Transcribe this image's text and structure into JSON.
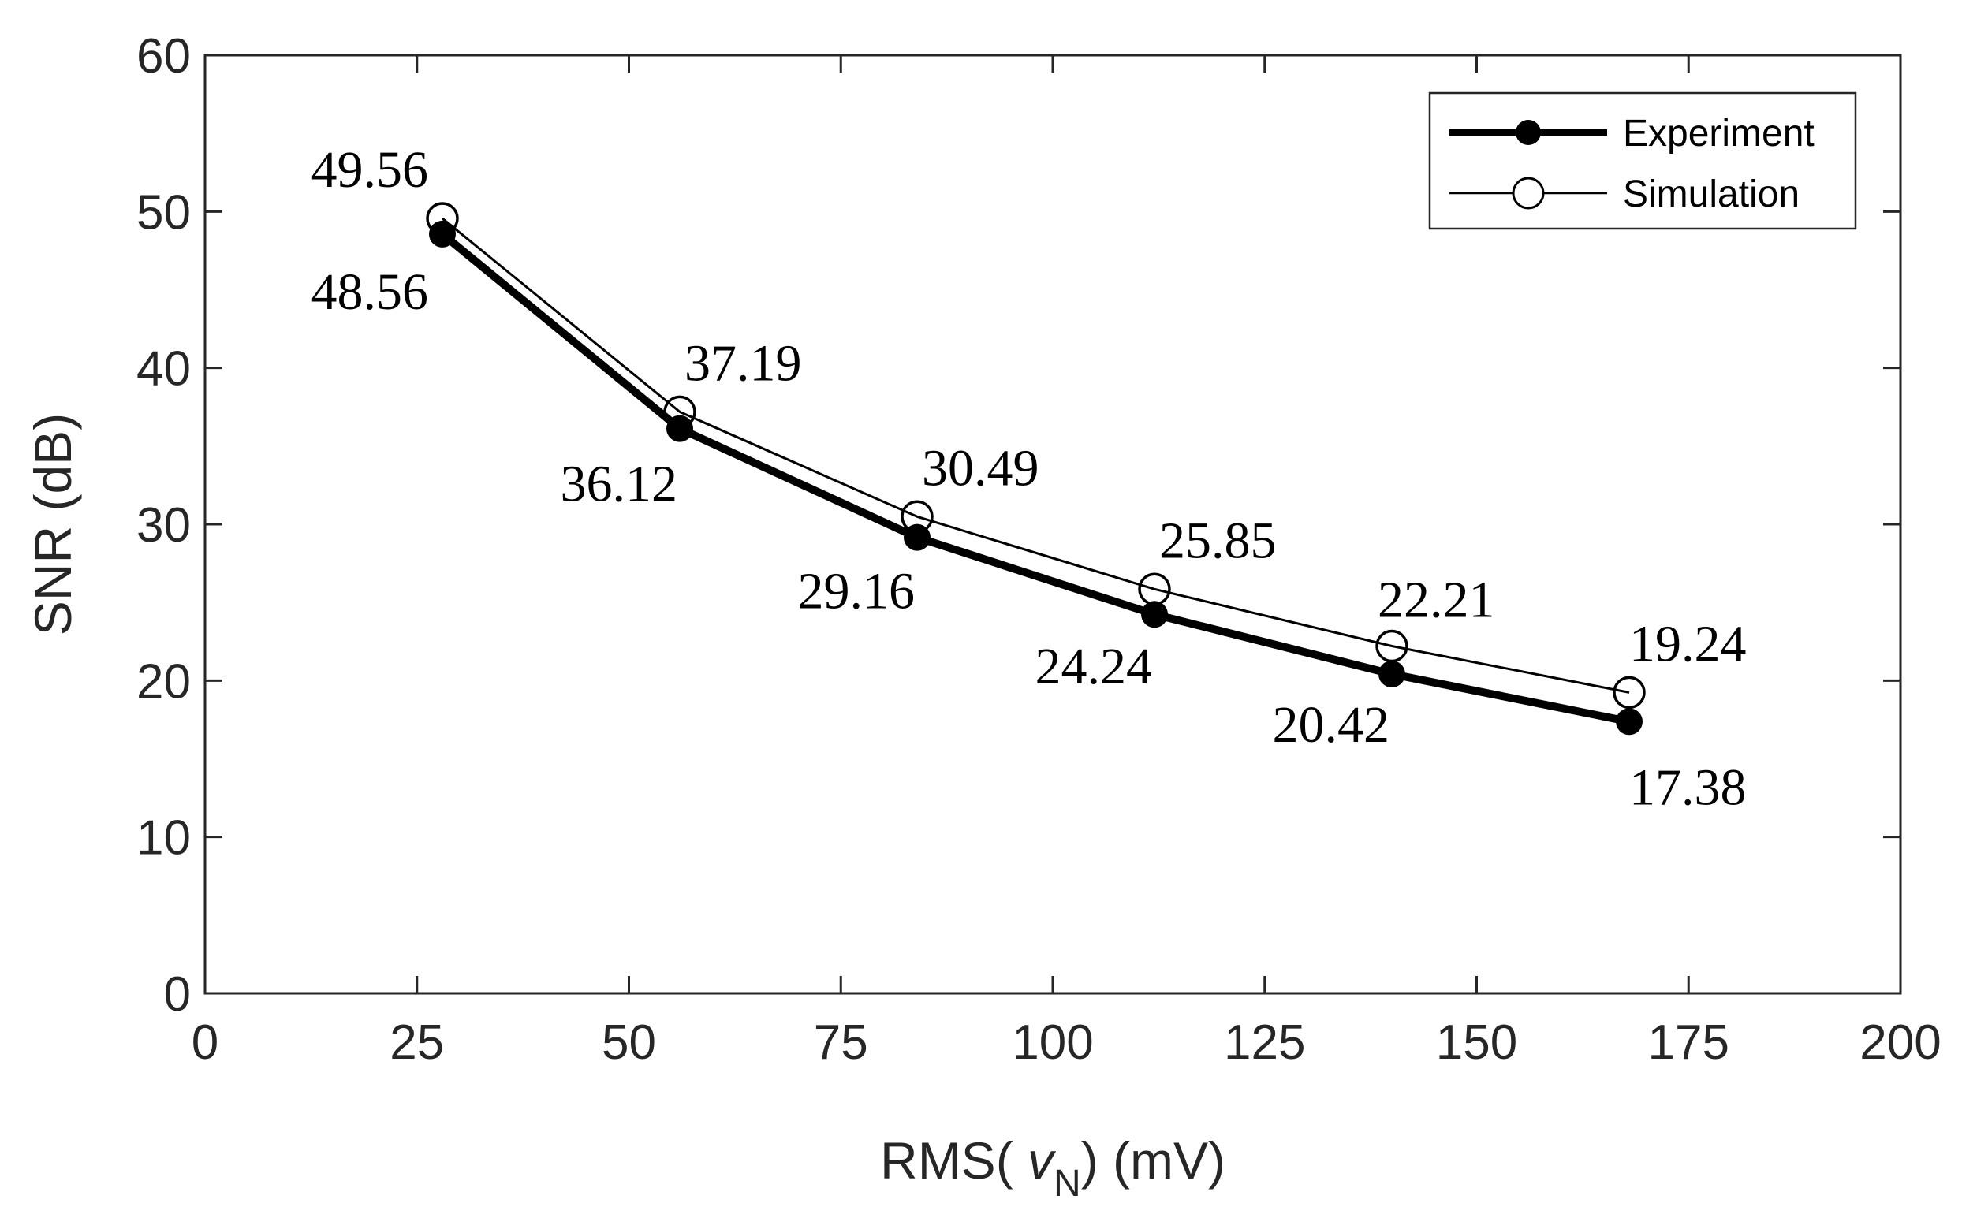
{
  "chart_data": {
    "type": "line",
    "xlabel": {
      "prefix": "RMS( ",
      "var": "v",
      "sub": "N",
      "suffix": ") (mV)"
    },
    "ylabel": "SNR (dB)",
    "xlim": [
      0,
      200
    ],
    "ylim": [
      0,
      60
    ],
    "xticks": [
      0,
      25,
      50,
      75,
      100,
      125,
      150,
      175,
      200
    ],
    "yticks": [
      0,
      10,
      20,
      30,
      40,
      50,
      60
    ],
    "x": [
      28,
      56,
      84,
      112,
      140,
      168
    ],
    "grid": false,
    "legend_position": "top-right",
    "series": [
      {
        "name": "Experiment",
        "values": [
          48.56,
          36.12,
          29.16,
          24.24,
          20.42,
          17.38
        ],
        "labels": [
          "48.56",
          "36.12",
          "29.16",
          "24.24",
          "20.42",
          "17.38"
        ],
        "marker": "filled-circle",
        "line": "thick",
        "color": "#000000"
      },
      {
        "name": "Simulation",
        "values": [
          49.56,
          37.19,
          30.49,
          25.85,
          22.21,
          19.24
        ],
        "labels": [
          "49.56",
          "37.19",
          "30.49",
          "25.85",
          "22.21",
          "19.24"
        ],
        "marker": "open-circle",
        "line": "thin",
        "color": "#000000"
      }
    ]
  }
}
